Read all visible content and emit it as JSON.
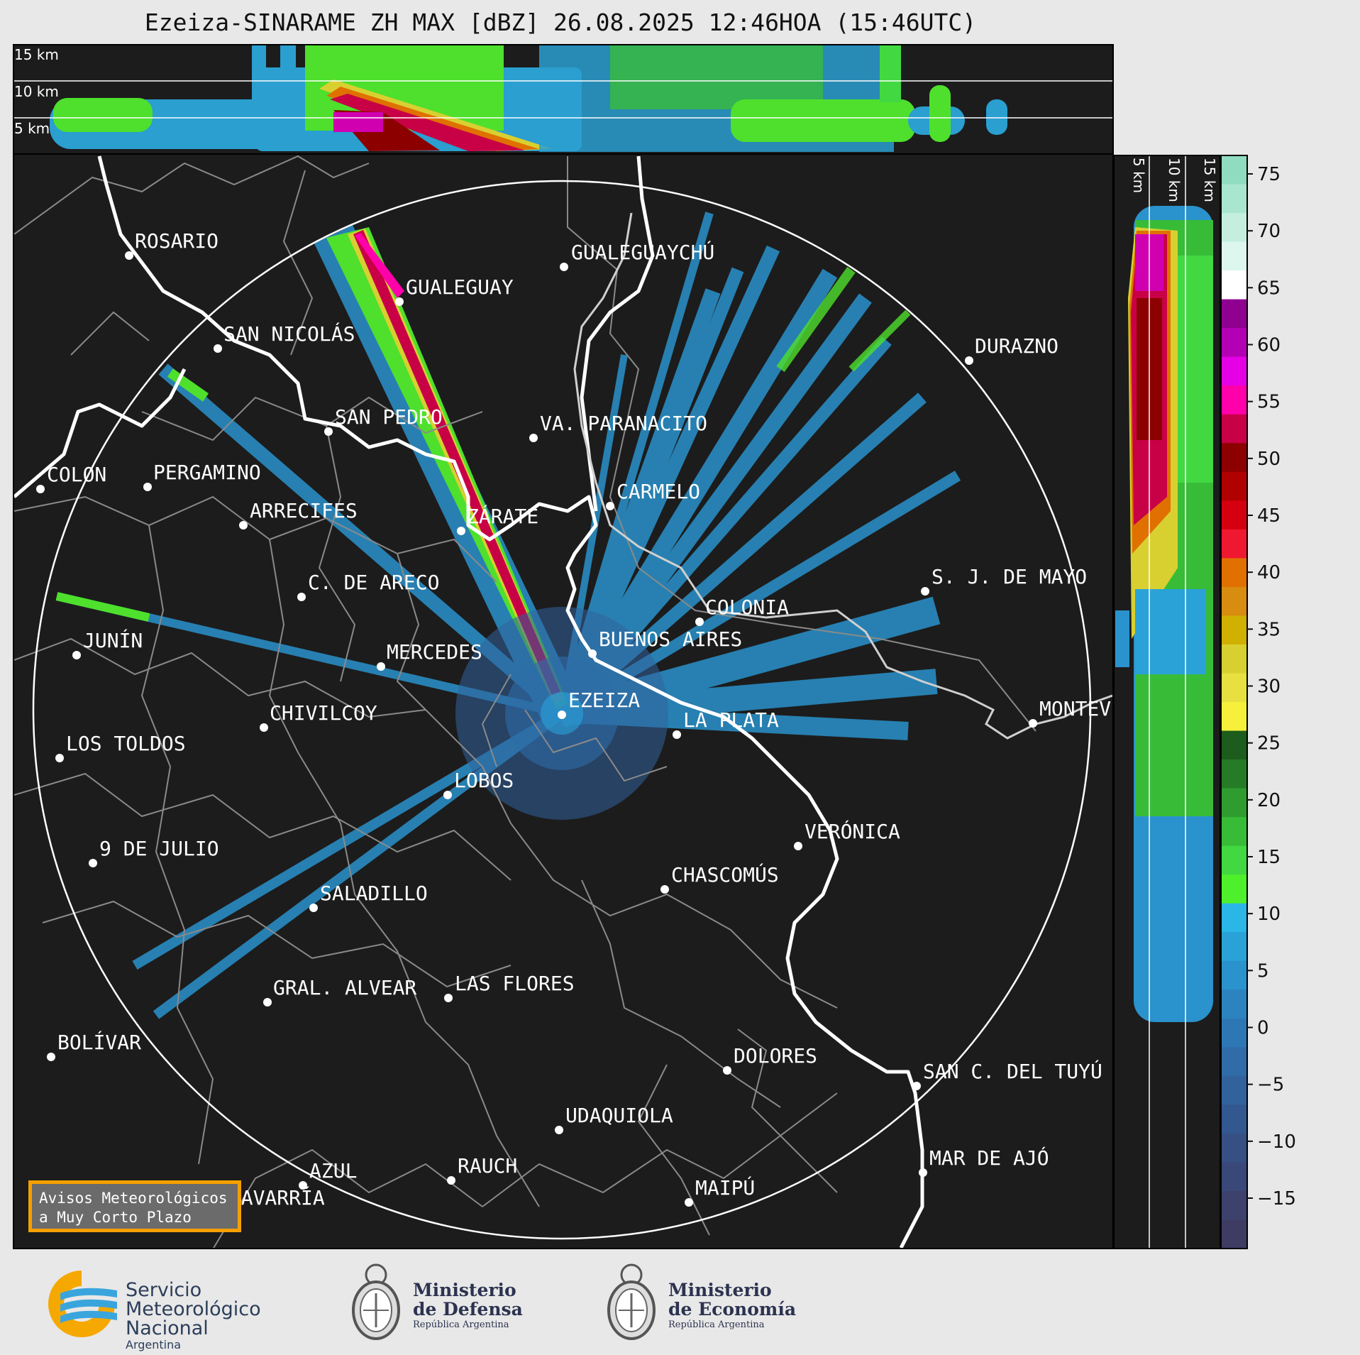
{
  "title": "Ezeiza-SINARAME ZH MAX [dBZ] 26.08.2025 12:46HOA (15:46UTC)",
  "top_panel": {
    "height_labels": [
      "15 km",
      "10 km",
      "5 km"
    ]
  },
  "side_panel": {
    "height_labels": [
      "5 km",
      "10 km",
      "15 km"
    ]
  },
  "colorbar": {
    "unit": "dBZ",
    "ticks": [
      "75",
      "70",
      "65",
      "60",
      "55",
      "50",
      "45",
      "40",
      "35",
      "30",
      "25",
      "20",
      "15",
      "10",
      "5",
      "0",
      "−5",
      "−10",
      "−15"
    ],
    "colors": [
      "#8fdcc0",
      "#a9e6cf",
      "#c4efdf",
      "#def7ee",
      "#ffffff",
      "#8f0090",
      "#b400b4",
      "#e600e6",
      "#ff00aa",
      "#c80046",
      "#8c0000",
      "#b00000",
      "#d40010",
      "#f01830",
      "#e07000",
      "#d88c10",
      "#d0b000",
      "#d8d030",
      "#e8e040",
      "#f6f03a",
      "#1c5c1c",
      "#267c26",
      "#2f9c2f",
      "#38bc38",
      "#42d842",
      "#4ef02c",
      "#2ab6e6",
      "#2aa2d8",
      "#2a92cc",
      "#2b84c0",
      "#2d78b4",
      "#2f6ca8",
      "#31629c",
      "#335890",
      "#365084",
      "#394878",
      "#3c426c",
      "#3e3c62"
    ]
  },
  "places": [
    {
      "name": "ROSARIO"
    },
    {
      "name": "GUALEGUAYCHÚ"
    },
    {
      "name": "GUALEGUAY"
    },
    {
      "name": "SAN NICOLÁS"
    },
    {
      "name": "DURAZNO"
    },
    {
      "name": "SAN PEDRO"
    },
    {
      "name": "VA. PARANACITO"
    },
    {
      "name": "COLON"
    },
    {
      "name": "PERGAMINO"
    },
    {
      "name": "CARMELO"
    },
    {
      "name": "ARRECIFES"
    },
    {
      "name": "ZÁRATE"
    },
    {
      "name": "S. J. DE MAYO"
    },
    {
      "name": "C. DE ARECO"
    },
    {
      "name": "COLONIA"
    },
    {
      "name": "JUNÍN"
    },
    {
      "name": "BUENOS AIRES"
    },
    {
      "name": "MERCEDES"
    },
    {
      "name": "MONTEV"
    },
    {
      "name": "EZEIZA"
    },
    {
      "name": "CHIVILCOY"
    },
    {
      "name": "LA PLATA"
    },
    {
      "name": "LOS TOLDOS"
    },
    {
      "name": "LOBOS"
    },
    {
      "name": "VERÓNICA"
    },
    {
      "name": "9 DE JULIO"
    },
    {
      "name": "CHASCOMÚS"
    },
    {
      "name": "SALADILLO"
    },
    {
      "name": "GRAL. ALVEAR"
    },
    {
      "name": "LAS FLORES"
    },
    {
      "name": "BOLÍVAR"
    },
    {
      "name": "DOLORES"
    },
    {
      "name": "SAN C. DEL TUYÚ"
    },
    {
      "name": "UDAQUIOLA"
    },
    {
      "name": "MAR DE AJÓ"
    },
    {
      "name": "AZUL"
    },
    {
      "name": "RAUCH"
    },
    {
      "name": "OLAVARRÍA"
    },
    {
      "name": "MAIPÚ"
    }
  ],
  "avisos": {
    "line1": "Avisos Meteorológicos",
    "line2": "a Muy Corto Plazo"
  },
  "footer": {
    "smn": {
      "line1": "Servicio",
      "line2": "Meteorológico",
      "line3": "Nacional",
      "line4": "Argentina"
    },
    "defensa": {
      "line1": "Ministerio",
      "line2": "de Defensa",
      "line3": "República Argentina"
    },
    "economia": {
      "line1": "Ministerio",
      "line2": "de Economía",
      "line3": "República Argentina"
    }
  }
}
